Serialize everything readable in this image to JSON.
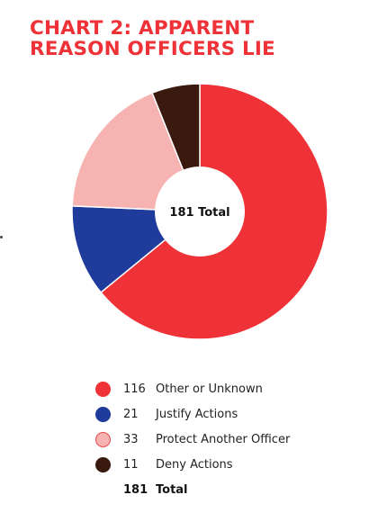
{
  "chart_data": {
    "type": "pie",
    "donut": true,
    "title_lines": [
      "CHART 2: APPARENT",
      "REASON OFFICERS LIE"
    ],
    "center_label": "181 Total",
    "slices": [
      {
        "label": "Other or Unknown",
        "value": 116,
        "color": "#ee3237",
        "stroke": "#ee3237"
      },
      {
        "label": "Justify Actions",
        "value": 21,
        "color": "#1f3b9b",
        "stroke": "#1f3b9b"
      },
      {
        "label": "Protect Another Officer",
        "value": 33,
        "color": "#f6b3b2",
        "stroke": "#e8484a"
      },
      {
        "label": "Deny Actions",
        "value": 11,
        "color": "#3a1a0e",
        "stroke": "#3a1a0e"
      }
    ],
    "total": {
      "label": "Total",
      "value": 181
    }
  }
}
